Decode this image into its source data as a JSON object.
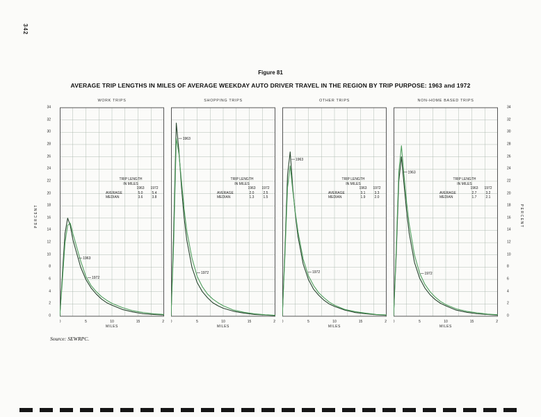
{
  "page": {
    "page_number": "342",
    "figure_label": "Figure 81",
    "title": "AVERAGE TRIP LENGTHS IN MILES OF AVERAGE WEEKDAY AUTO DRIVER TRAVEL IN THE REGION BY TRIP PURPOSE: 1963 and 1972",
    "source": "Source:  SEWRPC."
  },
  "chart_data": {
    "type": "line",
    "title": "AVERAGE TRIP LENGTHS IN MILES OF AVERAGE WEEKDAY AUTO DRIVER TRAVEL IN THE REGION BY TRIP PURPOSE: 1963 and 1972",
    "xlabel": "MILES",
    "ylabel": "PERCENT",
    "xlim": [
      0,
      20
    ],
    "ylim": [
      0,
      34
    ],
    "ytick_step": 2,
    "xgrid_step": 2.5,
    "xticks": [
      0,
      5,
      10,
      15,
      20
    ],
    "grid": true,
    "legend_position": "inline-annotations",
    "colors": {
      "1963": "#27452e",
      "1972": "#4f9e5d"
    },
    "x": [
      0,
      0.5,
      1,
      1.5,
      2,
      2.5,
      3,
      4,
      5,
      6,
      7,
      8,
      9,
      10,
      12,
      14,
      16,
      18,
      20
    ],
    "charts": [
      {
        "title": "WORK TRIPS",
        "series": [
          {
            "name": "1963",
            "values": [
              0,
              7,
              13.5,
              16,
              14.8,
              12.5,
              11,
              8,
              6,
              4.6,
              3.6,
              2.8,
              2.2,
              1.8,
              1.1,
              0.7,
              0.4,
              0.3,
              0.2
            ]
          },
          {
            "name": "1972",
            "values": [
              0,
              6,
              12,
              14.8,
              15.2,
              13.5,
              12,
              9,
              6.5,
              5,
              4,
              3.2,
              2.6,
              2.1,
              1.4,
              0.9,
              0.6,
              0.4,
              0.3
            ]
          }
        ],
        "annotations": [
          {
            "label": "1963",
            "x": 3.5,
            "y": 9.5
          },
          {
            "label": "1972",
            "x": 5.2,
            "y": 6.3
          }
        ],
        "table": {
          "title": "TRIP LENGTH\nIN MILES",
          "columns": [
            "1963",
            "1972"
          ],
          "rows": [
            {
              "label": "AVERAGE",
              "values": [
                "5.0",
                "5.4"
              ]
            },
            {
              "label": "MEDIAN",
              "values": [
                "3.6",
                "3.8"
              ]
            }
          ]
        }
      },
      {
        "title": "SHOPPING TRIPS",
        "series": [
          {
            "name": "1963",
            "values": [
              0,
              14,
              31.5,
              27,
              21,
              16,
              12.5,
              8,
              5.5,
              4,
              3,
              2.2,
              1.7,
              1.3,
              0.8,
              0.5,
              0.3,
              0.2,
              0.1
            ]
          },
          {
            "name": "1972",
            "values": [
              0,
              12,
              29,
              26.5,
              22,
              17.5,
              14,
              9.5,
              6.5,
              4.8,
              3.6,
              2.8,
              2.2,
              1.7,
              1.0,
              0.65,
              0.4,
              0.25,
              0.15
            ]
          }
        ],
        "annotations": [
          {
            "label": "1963",
            "x": 1.3,
            "y": 29
          },
          {
            "label": "1972",
            "x": 4.8,
            "y": 7.1
          }
        ],
        "table": {
          "title": "TRIP LENGTH\nIN MILES",
          "columns": [
            "1963",
            "1972"
          ],
          "rows": [
            {
              "label": "AVERAGE",
              "values": [
                "2.0",
                "2.5"
              ]
            },
            {
              "label": "MEDIAN",
              "values": [
                "1.3",
                "1.5"
              ]
            }
          ]
        }
      },
      {
        "title": "OTHER TRIPS",
        "series": [
          {
            "name": "1963",
            "values": [
              0,
              11,
              23,
              26.8,
              21,
              16.5,
              13,
              8.5,
              6,
              4.4,
              3.4,
              2.6,
              2.0,
              1.6,
              1.0,
              0.6,
              0.4,
              0.25,
              0.15
            ]
          },
          {
            "name": "1972",
            "values": [
              0,
              10,
              21,
              24.5,
              20.5,
              16.8,
              13.8,
              9.3,
              6.6,
              5.0,
              3.8,
              3.0,
              2.3,
              1.8,
              1.1,
              0.75,
              0.5,
              0.3,
              0.2
            ]
          }
        ],
        "annotations": [
          {
            "label": "1963",
            "x": 1.6,
            "y": 25.6
          },
          {
            "label": "1972",
            "x": 4.8,
            "y": 7.2
          }
        ],
        "table": {
          "title": "TRIP LENGTH\nIN MILES",
          "columns": [
            "1963",
            "1972"
          ],
          "rows": [
            {
              "label": "AVERAGE",
              "values": [
                "3.1",
                "3.3"
              ]
            },
            {
              "label": "MEDIAN",
              "values": [
                "1.9",
                "2.0"
              ]
            }
          ]
        }
      },
      {
        "title": "NON-HOME BASED TRIPS",
        "series": [
          {
            "name": "1963",
            "values": [
              0,
              10,
              22,
              26,
              21.5,
              17,
              13.5,
              8.8,
              6.2,
              4.6,
              3.5,
              2.7,
              2.1,
              1.7,
              1.0,
              0.65,
              0.4,
              0.28,
              0.18
            ]
          },
          {
            "name": "1972",
            "values": [
              0,
              11,
              23.5,
              27.8,
              23,
              18.5,
              15,
              10,
              7,
              5.2,
              4.0,
              3.1,
              2.4,
              1.9,
              1.2,
              0.8,
              0.55,
              0.35,
              0.25
            ]
          }
        ],
        "annotations": [
          {
            "label": "1963",
            "x": 1.8,
            "y": 23.5
          },
          {
            "label": "1972",
            "x": 5.0,
            "y": 7.0
          }
        ],
        "table": {
          "title": "TRIP LENGTH\nIN MILES",
          "columns": [
            "1963",
            "1972"
          ],
          "rows": [
            {
              "label": "AVERAGE",
              "values": [
                "2.7",
                "3.2"
              ]
            },
            {
              "label": "MEDIAN",
              "values": [
                "1.7",
                "2.1"
              ]
            }
          ]
        }
      }
    ]
  }
}
